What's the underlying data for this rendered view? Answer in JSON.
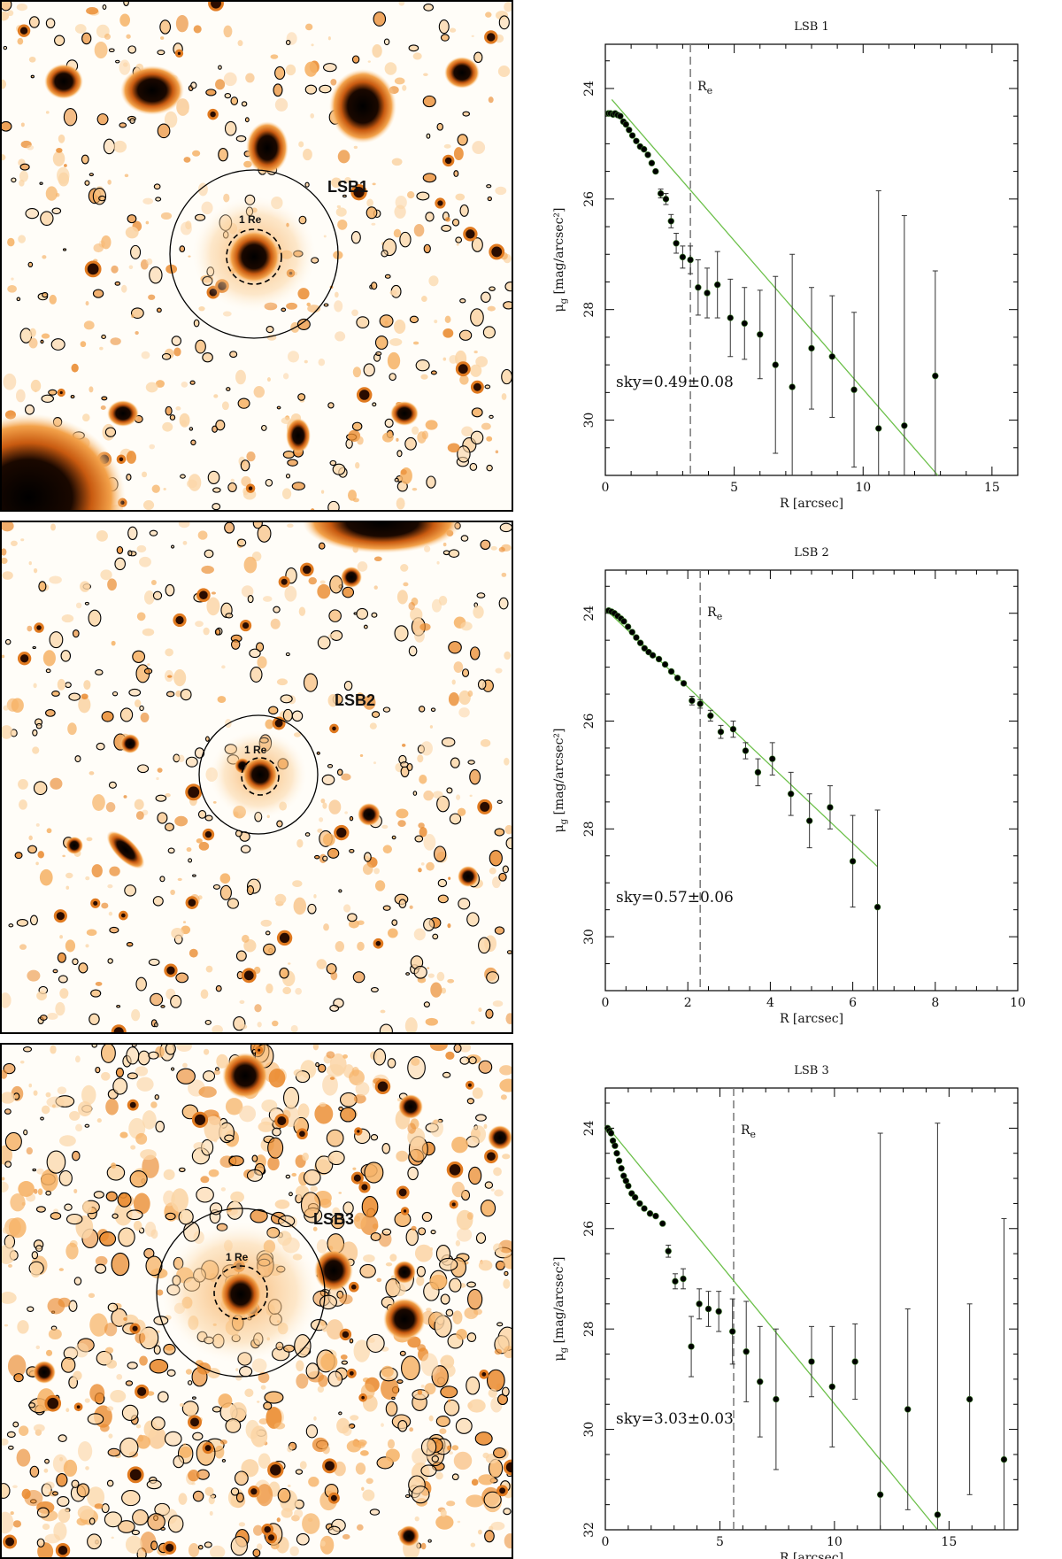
{
  "panels": [
    {
      "image_label": "LSB1",
      "re_label": "1 Re"
    },
    {
      "image_label": "LSB2",
      "re_label": "1 Re"
    },
    {
      "image_label": "LSB3",
      "re_label": "1 Re"
    }
  ],
  "chart_data": [
    {
      "type": "scatter",
      "title": "LSB 1",
      "xlabel": "R [arcsec]",
      "ylabel_base": "μ",
      "ylabel_sub": "g",
      "ylabel_rest": " [mag/arcsec²]",
      "xlim": [
        0,
        16
      ],
      "ylim": [
        31,
        23.2
      ],
      "xticks": [
        0,
        5,
        10,
        15
      ],
      "yticks": [
        24,
        26,
        28,
        30
      ],
      "re_text": "R",
      "re_sub": "e",
      "re_x": 3.3,
      "sky_text": "sky=0.49±0.08",
      "fit": {
        "x": [
          0.25,
          12.9
        ],
        "y": [
          24.2,
          31
        ]
      },
      "points": [
        [
          0.12,
          24.45,
          0
        ],
        [
          0.2,
          24.45,
          0
        ],
        [
          0.3,
          24.47,
          0
        ],
        [
          0.38,
          24.45,
          0
        ],
        [
          0.48,
          24.48,
          0
        ],
        [
          0.58,
          24.5,
          0
        ],
        [
          0.7,
          24.6,
          0
        ],
        [
          0.8,
          24.65,
          0
        ],
        [
          0.92,
          24.75,
          0
        ],
        [
          1.05,
          24.85,
          0
        ],
        [
          1.2,
          24.95,
          0
        ],
        [
          1.35,
          25.05,
          0
        ],
        [
          1.5,
          25.1,
          0
        ],
        [
          1.65,
          25.2,
          0
        ],
        [
          1.8,
          25.35,
          0
        ],
        [
          1.95,
          25.5,
          0
        ],
        [
          2.15,
          25.9,
          0.08
        ],
        [
          2.35,
          26.0,
          0.1
        ],
        [
          2.55,
          26.4,
          0.12
        ],
        [
          2.75,
          26.8,
          0.18
        ],
        [
          3.0,
          27.05,
          0.2
        ],
        [
          3.3,
          27.1,
          0.25
        ],
        [
          3.6,
          27.6,
          0.5
        ],
        [
          3.95,
          27.7,
          0.45
        ],
        [
          4.35,
          27.55,
          0.6
        ],
        [
          4.85,
          28.15,
          0.7
        ],
        [
          5.4,
          28.25,
          0.65
        ],
        [
          6.0,
          28.45,
          0.8
        ],
        [
          6.6,
          29.0,
          1.6
        ],
        [
          7.25,
          29.4,
          2.4
        ],
        [
          8.0,
          28.7,
          1.1
        ],
        [
          8.8,
          28.85,
          1.1
        ],
        [
          9.65,
          29.45,
          1.4
        ],
        [
          10.6,
          30.15,
          4.3
        ],
        [
          11.6,
          30.1,
          3.8
        ],
        [
          12.8,
          29.2,
          1.9
        ]
      ]
    },
    {
      "type": "scatter",
      "title": "LSB 2",
      "xlabel": "R [arcsec]",
      "ylabel_base": "μ",
      "ylabel_sub": "g",
      "ylabel_rest": " [mag/arcsec²]",
      "xlim": [
        0,
        10
      ],
      "ylim": [
        31,
        23.2
      ],
      "xticks": [
        0,
        2,
        4,
        6,
        8,
        10
      ],
      "yticks": [
        24,
        26,
        28,
        30
      ],
      "re_text": "R",
      "re_sub": "e",
      "re_x": 2.3,
      "sky_text": "sky=0.57±0.06",
      "fit": {
        "x": [
          0.08,
          6.6
        ],
        "y": [
          23.98,
          28.7
        ]
      },
      "points": [
        [
          0.08,
          23.95,
          0
        ],
        [
          0.15,
          23.97,
          0
        ],
        [
          0.22,
          24.0,
          0
        ],
        [
          0.3,
          24.05,
          0
        ],
        [
          0.38,
          24.1,
          0
        ],
        [
          0.45,
          24.15,
          0
        ],
        [
          0.55,
          24.25,
          0
        ],
        [
          0.65,
          24.35,
          0
        ],
        [
          0.75,
          24.45,
          0
        ],
        [
          0.85,
          24.55,
          0
        ],
        [
          0.95,
          24.65,
          0
        ],
        [
          1.05,
          24.72,
          0
        ],
        [
          1.15,
          24.78,
          0
        ],
        [
          1.3,
          24.85,
          0
        ],
        [
          1.45,
          24.95,
          0
        ],
        [
          1.6,
          25.08,
          0
        ],
        [
          1.75,
          25.2,
          0
        ],
        [
          1.9,
          25.3,
          0
        ],
        [
          2.1,
          25.62,
          0.08
        ],
        [
          2.3,
          25.68,
          0.08
        ],
        [
          2.55,
          25.9,
          0.1
        ],
        [
          2.8,
          26.2,
          0.12
        ],
        [
          3.1,
          26.15,
          0.15
        ],
        [
          3.4,
          26.55,
          0.15
        ],
        [
          3.7,
          26.95,
          0.25
        ],
        [
          4.05,
          26.7,
          0.3
        ],
        [
          4.5,
          27.35,
          0.4
        ],
        [
          4.95,
          27.85,
          0.5
        ],
        [
          5.45,
          27.6,
          0.4
        ],
        [
          6.0,
          28.6,
          0.85
        ],
        [
          6.6,
          29.45,
          1.8
        ]
      ]
    },
    {
      "type": "scatter",
      "title": "LSB 3",
      "xlabel": "R [arcsec]",
      "ylabel_base": "μ",
      "ylabel_sub": "g",
      "ylabel_rest": " [mag/arcsec²]",
      "xlim": [
        0,
        18
      ],
      "ylim": [
        32,
        23.2
      ],
      "xticks": [
        0,
        5,
        10,
        15
      ],
      "yticks": [
        24,
        26,
        28,
        30,
        32
      ],
      "re_text": "R",
      "re_sub": "e",
      "re_x": 5.6,
      "sky_text": "sky=3.03±0.03",
      "fit": {
        "x": [
          0.15,
          14.5
        ],
        "y": [
          24.0,
          32.0
        ]
      },
      "points": [
        [
          0.1,
          24.0,
          0
        ],
        [
          0.18,
          24.05,
          0
        ],
        [
          0.25,
          24.1,
          0
        ],
        [
          0.33,
          24.25,
          0
        ],
        [
          0.42,
          24.35,
          0
        ],
        [
          0.5,
          24.5,
          0
        ],
        [
          0.6,
          24.65,
          0
        ],
        [
          0.7,
          24.8,
          0
        ],
        [
          0.8,
          24.95,
          0
        ],
        [
          0.9,
          25.05,
          0
        ],
        [
          1.0,
          25.15,
          0
        ],
        [
          1.15,
          25.3,
          0
        ],
        [
          1.3,
          25.38,
          0
        ],
        [
          1.5,
          25.5,
          0
        ],
        [
          1.7,
          25.6,
          0
        ],
        [
          1.95,
          25.7,
          0
        ],
        [
          2.2,
          25.75,
          0
        ],
        [
          2.5,
          25.9,
          0
        ],
        [
          2.75,
          26.45,
          0.12
        ],
        [
          3.05,
          27.05,
          0.15
        ],
        [
          3.4,
          27.0,
          0.2
        ],
        [
          3.75,
          28.35,
          0.6
        ],
        [
          4.1,
          27.5,
          0.3
        ],
        [
          4.5,
          27.6,
          0.35
        ],
        [
          4.95,
          27.65,
          0.4
        ],
        [
          5.55,
          28.05,
          0.65
        ],
        [
          6.15,
          28.45,
          1.0
        ],
        [
          6.75,
          29.05,
          1.1
        ],
        [
          7.45,
          29.4,
          1.4
        ],
        [
          9.0,
          28.65,
          0.7
        ],
        [
          9.9,
          29.15,
          1.2
        ],
        [
          10.9,
          28.65,
          0.75
        ],
        [
          12.0,
          31.3,
          7.2
        ],
        [
          13.2,
          29.6,
          2.0
        ],
        [
          14.5,
          31.7,
          7.8
        ],
        [
          15.9,
          29.4,
          1.9
        ],
        [
          17.4,
          30.6,
          4.8
        ]
      ]
    }
  ]
}
